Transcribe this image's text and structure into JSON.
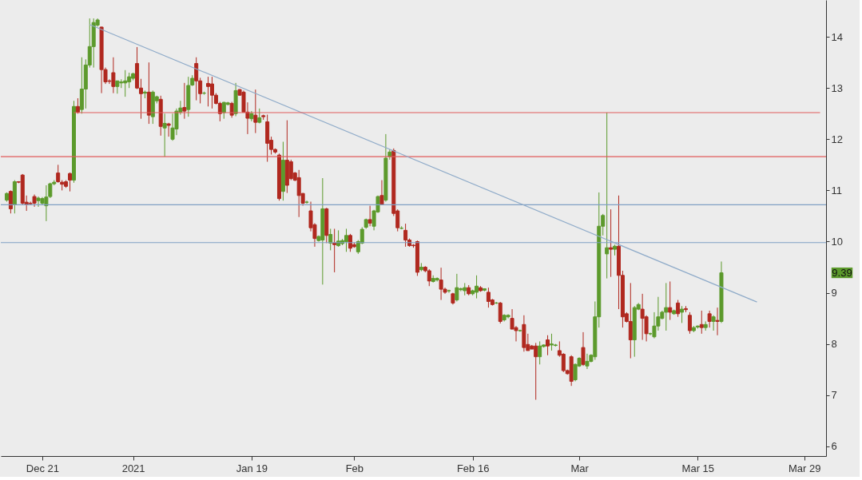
{
  "chart_data": {
    "type": "candlestick",
    "categories": [
      null,
      null,
      null,
      null,
      null,
      null,
      null,
      null,
      null,
      "Dec 21",
      null,
      null,
      null,
      null,
      null,
      null,
      null,
      null,
      null,
      null,
      null,
      null,
      null,
      null,
      null,
      null,
      null,
      null,
      null,
      null,
      null,
      null,
      "2021",
      null,
      null,
      null,
      null,
      null,
      null,
      null,
      null,
      null,
      null,
      null,
      null,
      null,
      null,
      null,
      null,
      null,
      null,
      null,
      null,
      null,
      null,
      null,
      null,
      null,
      null,
      null,
      null,
      null,
      "Jan 19",
      null,
      null,
      null,
      null,
      null,
      null,
      null,
      null,
      null,
      null,
      null,
      null,
      null,
      null,
      null,
      null,
      null,
      null,
      null,
      null,
      null,
      null,
      null,
      null,
      null,
      "Feb",
      null,
      null,
      null,
      null,
      null,
      null,
      null,
      null,
      null,
      null,
      null,
      null,
      null,
      null,
      null,
      null,
      null,
      null,
      null,
      null,
      null,
      null,
      null,
      null,
      null,
      null,
      null,
      null,
      null,
      "Feb 16",
      null,
      null,
      null,
      null,
      null,
      null,
      null,
      null,
      null,
      null,
      null,
      null,
      null,
      null,
      null,
      null,
      null,
      null,
      null,
      null,
      null,
      null,
      null,
      null,
      null,
      null,
      "Mar",
      null,
      null,
      null,
      null,
      null,
      null,
      null,
      null,
      null,
      null,
      null,
      null,
      null,
      null,
      null,
      null,
      null,
      null,
      null,
      null,
      null,
      null,
      null,
      null,
      null,
      null,
      null,
      null,
      null,
      "Mar 15",
      null,
      null,
      null,
      null,
      null,
      null,
      null,
      null,
      null,
      null,
      null,
      null,
      null,
      null,
      null,
      null,
      null,
      null,
      null,
      null,
      null,
      null,
      null,
      null,
      null,
      null,
      "Mar 29",
      null,
      null,
      null,
      null
    ],
    "ohlc": [
      [
        10.81,
        10.96,
        10.78,
        10.94
      ],
      [
        10.98,
        11.0,
        10.55,
        10.64
      ],
      [
        10.72,
        11.2,
        10.55,
        11.17
      ],
      [
        11.17,
        11.18,
        11.14,
        11.16
      ],
      [
        11.3,
        11.32,
        10.72,
        10.75
      ],
      [
        10.77,
        10.9,
        10.6,
        10.72
      ],
      [
        10.75,
        10.78,
        10.72,
        10.74
      ],
      [
        10.88,
        10.92,
        10.68,
        10.75
      ],
      [
        10.8,
        10.88,
        10.68,
        10.85
      ],
      [
        10.75,
        10.87,
        10.72,
        10.84
      ],
      [
        10.7,
        11.1,
        10.4,
        10.87
      ],
      [
        10.88,
        11.15,
        10.85,
        11.13
      ],
      [
        11.13,
        11.2,
        11.1,
        11.16
      ],
      [
        11.34,
        11.5,
        11.15,
        11.17
      ],
      [
        11.16,
        11.2,
        11.0,
        11.12
      ],
      [
        11.17,
        11.2,
        11.05,
        11.08
      ],
      [
        11.33,
        11.35,
        10.98,
        11.2
      ],
      [
        11.2,
        12.75,
        11.15,
        12.64
      ],
      [
        12.64,
        12.8,
        12.5,
        12.53
      ],
      [
        12.58,
        13.6,
        12.5,
        12.98
      ],
      [
        12.98,
        13.56,
        12.6,
        13.45
      ],
      [
        13.45,
        14.36,
        13.4,
        13.81
      ],
      [
        13.81,
        14.36,
        13.4,
        14.28
      ],
      [
        14.23,
        14.36,
        14.2,
        14.33
      ],
      [
        14.19,
        14.2,
        12.9,
        13.36
      ],
      [
        13.36,
        13.4,
        13.08,
        13.12
      ],
      [
        13.14,
        13.17,
        13.08,
        13.13
      ],
      [
        13.3,
        13.6,
        12.9,
        13.03
      ],
      [
        13.03,
        13.14,
        12.89,
        13.14
      ],
      [
        13.1,
        13.17,
        13.0,
        13.12
      ],
      [
        13.1,
        13.35,
        12.83,
        13.14
      ],
      [
        13.12,
        13.3,
        13.0,
        13.22
      ],
      [
        13.19,
        13.3,
        13.15,
        13.28
      ],
      [
        13.48,
        13.8,
        12.98,
        13.0
      ],
      [
        13.0,
        13.18,
        12.4,
        12.89
      ],
      [
        12.9,
        12.95,
        12.8,
        12.92
      ],
      [
        12.92,
        13.5,
        12.3,
        12.47
      ],
      [
        12.44,
        12.95,
        12.3,
        12.92
      ],
      [
        12.75,
        12.85,
        12.7,
        12.83
      ],
      [
        12.78,
        12.85,
        12.07,
        12.25
      ],
      [
        12.22,
        12.5,
        11.66,
        12.31
      ],
      [
        12.3,
        12.32,
        12.05,
        12.27
      ],
      [
        12.0,
        12.5,
        11.97,
        12.22
      ],
      [
        12.2,
        12.6,
        12.08,
        12.55
      ],
      [
        12.53,
        12.75,
        12.48,
        12.61
      ],
      [
        12.62,
        13.1,
        12.4,
        12.55
      ],
      [
        12.58,
        13.22,
        12.44,
        13.05
      ],
      [
        13.06,
        13.25,
        13.04,
        13.19
      ],
      [
        13.48,
        13.6,
        12.76,
        13.14
      ],
      [
        13.14,
        13.2,
        12.7,
        12.89
      ],
      [
        12.9,
        12.93,
        12.87,
        12.9
      ],
      [
        13.09,
        13.22,
        12.64,
        13.03
      ],
      [
        13.08,
        13.22,
        12.6,
        12.86
      ],
      [
        12.86,
        12.9,
        12.68,
        12.7
      ],
      [
        12.7,
        12.73,
        12.35,
        12.5
      ],
      [
        12.52,
        12.73,
        12.4,
        12.72
      ],
      [
        12.68,
        12.73,
        12.66,
        12.71
      ],
      [
        12.7,
        12.73,
        12.42,
        12.47
      ],
      [
        12.5,
        13.1,
        12.45,
        12.95
      ],
      [
        12.97,
        12.98,
        12.85,
        12.86
      ],
      [
        12.92,
        12.95,
        12.53,
        12.53
      ],
      [
        12.53,
        12.72,
        12.1,
        12.41
      ],
      [
        12.4,
        12.55,
        12.35,
        12.5
      ],
      [
        12.47,
        12.97,
        12.12,
        12.33
      ],
      [
        12.33,
        12.6,
        12.31,
        12.42
      ],
      [
        12.46,
        12.48,
        12.38,
        12.44
      ],
      [
        12.34,
        12.48,
        11.56,
        11.92
      ],
      [
        11.98,
        12.05,
        11.7,
        11.8
      ],
      [
        11.8,
        11.82,
        11.72,
        11.75
      ],
      [
        11.69,
        11.72,
        10.8,
        10.84
      ],
      [
        10.98,
        11.95,
        10.8,
        11.59
      ],
      [
        11.59,
        12.37,
        10.95,
        11.1
      ],
      [
        11.56,
        11.6,
        11.2,
        11.23
      ],
      [
        11.34,
        11.36,
        11.18,
        11.2
      ],
      [
        11.25,
        11.4,
        10.48,
        10.9
      ],
      [
        10.94,
        10.95,
        10.7,
        10.75
      ],
      [
        10.77,
        10.8,
        10.74,
        10.77
      ],
      [
        10.6,
        10.78,
        10.2,
        10.27
      ],
      [
        10.33,
        10.36,
        9.9,
        10.06
      ],
      [
        10.02,
        10.12,
        10.0,
        10.1
      ],
      [
        10.03,
        11.24,
        9.16,
        10.64
      ],
      [
        10.64,
        10.66,
        9.97,
        10.12
      ],
      [
        9.97,
        10.25,
        9.83,
        10.14
      ],
      [
        9.97,
        10.25,
        9.4,
        9.94
      ],
      [
        9.92,
        10.22,
        9.9,
        10.01
      ],
      [
        9.96,
        10.05,
        9.93,
        10.02
      ],
      [
        10.0,
        10.25,
        9.8,
        10.12
      ],
      [
        10.12,
        10.15,
        9.8,
        9.87
      ],
      [
        9.94,
        9.98,
        9.88,
        9.9
      ],
      [
        9.8,
        10.03,
        9.76,
        10.0
      ],
      [
        9.97,
        10.28,
        9.95,
        10.24
      ],
      [
        10.28,
        10.45,
        10.25,
        10.43
      ],
      [
        10.43,
        10.7,
        10.3,
        10.36
      ],
      [
        10.3,
        10.62,
        10.22,
        10.6
      ],
      [
        10.58,
        10.9,
        10.56,
        10.88
      ],
      [
        10.9,
        11.2,
        10.72,
        10.72
      ],
      [
        10.81,
        12.1,
        10.78,
        11.63
      ],
      [
        11.66,
        11.8,
        11.6,
        11.75
      ],
      [
        11.78,
        11.82,
        10.5,
        10.55
      ],
      [
        10.6,
        10.63,
        10.2,
        10.27
      ],
      [
        10.26,
        10.3,
        10.24,
        10.26
      ],
      [
        10.22,
        10.35,
        9.9,
        10.03
      ],
      [
        10.03,
        10.06,
        9.9,
        9.92
      ],
      [
        9.93,
        9.95,
        9.88,
        9.92
      ],
      [
        10.0,
        10.02,
        9.33,
        9.4
      ],
      [
        9.45,
        9.58,
        9.42,
        9.5
      ],
      [
        9.5,
        9.52,
        9.4,
        9.43
      ],
      [
        9.43,
        9.46,
        9.13,
        9.23
      ],
      [
        9.22,
        9.34,
        9.2,
        9.28
      ],
      [
        9.25,
        9.3,
        9.22,
        9.28
      ],
      [
        9.25,
        9.49,
        8.86,
        9.07
      ],
      [
        9.07,
        9.1,
        8.98,
        9.01
      ],
      [
        9.04,
        9.06,
        9.0,
        9.04
      ],
      [
        8.98,
        9.0,
        8.77,
        8.8
      ],
      [
        8.86,
        9.37,
        8.83,
        9.1
      ],
      [
        9.06,
        9.1,
        9.03,
        9.08
      ],
      [
        9.04,
        9.19,
        8.95,
        9.1
      ],
      [
        9.1,
        9.15,
        8.95,
        8.98
      ],
      [
        8.98,
        9.06,
        8.95,
        9.04
      ],
      [
        9.01,
        9.34,
        8.89,
        9.13
      ],
      [
        9.1,
        9.13,
        9.02,
        9.04
      ],
      [
        9.05,
        9.08,
        9.03,
        9.08
      ],
      [
        9.01,
        9.1,
        8.71,
        8.83
      ],
      [
        8.86,
        8.88,
        8.75,
        8.77
      ],
      [
        8.8,
        8.82,
        8.78,
        8.8
      ],
      [
        8.8,
        8.82,
        8.4,
        8.44
      ],
      [
        8.47,
        8.58,
        8.44,
        8.56
      ],
      [
        8.53,
        8.58,
        8.5,
        8.56
      ],
      [
        8.5,
        8.68,
        8.29,
        8.29
      ],
      [
        8.32,
        8.35,
        8.05,
        8.26
      ],
      [
        8.26,
        8.28,
        8.24,
        8.26
      ],
      [
        8.38,
        8.56,
        7.85,
        7.93
      ],
      [
        7.99,
        8.2,
        7.87,
        7.87
      ],
      [
        7.96,
        7.98,
        7.9,
        7.9
      ],
      [
        7.96,
        8.02,
        6.91,
        7.75
      ],
      [
        7.75,
        8.05,
        7.6,
        7.96
      ],
      [
        7.95,
        7.99,
        7.93,
        7.98
      ],
      [
        8.08,
        8.17,
        7.78,
        7.96
      ],
      [
        7.98,
        8.2,
        7.87,
        8.0
      ],
      [
        7.97,
        8.0,
        7.95,
        7.98
      ],
      [
        7.87,
        8.05,
        7.75,
        7.78
      ],
      [
        7.8,
        7.82,
        7.45,
        7.48
      ],
      [
        7.48,
        7.5,
        7.4,
        7.42
      ],
      [
        7.75,
        7.78,
        7.18,
        7.27
      ],
      [
        7.3,
        7.62,
        7.27,
        7.6
      ],
      [
        7.57,
        7.74,
        7.55,
        7.72
      ],
      [
        7.93,
        8.23,
        7.57,
        7.6
      ],
      [
        7.57,
        7.81,
        7.51,
        7.66
      ],
      [
        7.66,
        7.8,
        7.64,
        7.78
      ],
      [
        7.75,
        8.83,
        7.69,
        8.53
      ],
      [
        8.53,
        10.96,
        8.32,
        10.3
      ],
      [
        10.3,
        10.54,
        10.12,
        10.51
      ],
      [
        9.76,
        12.52,
        9.28,
        9.88
      ],
      [
        9.88,
        10.63,
        9.31,
        9.85
      ],
      [
        9.85,
        9.94,
        9.73,
        9.91
      ],
      [
        9.91,
        10.9,
        8.68,
        9.34
      ],
      [
        9.34,
        9.43,
        8.32,
        8.53
      ],
      [
        8.59,
        8.62,
        8.42,
        8.44
      ],
      [
        8.44,
        9.19,
        7.72,
        8.08
      ],
      [
        8.08,
        8.74,
        7.75,
        8.71
      ],
      [
        8.68,
        8.8,
        8.66,
        8.77
      ],
      [
        8.68,
        8.98,
        8.08,
        8.5
      ],
      [
        8.53,
        8.56,
        8.05,
        8.2
      ],
      [
        8.2,
        8.22,
        8.17,
        8.2
      ],
      [
        8.14,
        8.62,
        8.11,
        8.35
      ],
      [
        8.35,
        8.92,
        8.26,
        8.53
      ],
      [
        8.5,
        8.65,
        8.48,
        8.62
      ],
      [
        8.62,
        9.19,
        8.26,
        8.71
      ],
      [
        8.71,
        9.22,
        8.47,
        8.62
      ],
      [
        8.59,
        8.67,
        8.57,
        8.65
      ],
      [
        8.8,
        8.86,
        8.53,
        8.59
      ],
      [
        8.62,
        8.74,
        8.41,
        8.68
      ],
      [
        8.69,
        8.74,
        8.62,
        8.67
      ],
      [
        8.56,
        8.62,
        8.2,
        8.26
      ],
      [
        8.26,
        8.35,
        8.23,
        8.32
      ],
      [
        8.33,
        8.36,
        8.3,
        8.35
      ],
      [
        8.38,
        8.65,
        8.2,
        8.32
      ],
      [
        8.32,
        8.44,
        8.26,
        8.38
      ],
      [
        8.59,
        8.65,
        8.32,
        8.44
      ],
      [
        8.44,
        8.56,
        8.26,
        8.53
      ],
      [
        8.46,
        8.71,
        8.17,
        8.44
      ],
      [
        8.44,
        9.61,
        8.41,
        9.39
      ],
      null,
      null,
      null,
      null,
      null,
      null,
      null,
      null,
      null,
      null,
      null,
      null,
      null,
      null,
      null,
      null,
      null,
      null,
      null,
      null,
      null,
      null,
      null,
      null,
      null
    ],
    "colors": [
      "#5c9a2c",
      "#b0281f",
      "#5c9a2c",
      "#b0281f",
      "#b0281f",
      "#b0281f",
      "#b0281f",
      "#b0281f",
      "#5c9a2c",
      "#5c9a2c",
      "#5c9a2c",
      "#5c9a2c",
      "#5c9a2c",
      "#b0281f",
      "#b0281f",
      "#b0281f",
      "#b0281f",
      "#5c9a2c",
      "#b0281f",
      "#5c9a2c",
      "#5c9a2c",
      "#5c9a2c",
      "#5c9a2c",
      "#5c9a2c",
      "#b0281f",
      "#b0281f",
      "#b0281f",
      "#b0281f",
      "#5c9a2c",
      "#5c9a2c",
      "#5c9a2c",
      "#5c9a2c",
      "#5c9a2c",
      "#b0281f",
      "#b0281f",
      "#5c9a2c",
      "#b0281f",
      "#5c9a2c",
      "#5c9a2c",
      "#b0281f",
      "#5c9a2c",
      "#b0281f",
      "#5c9a2c",
      "#5c9a2c",
      "#5c9a2c",
      "#b0281f",
      "#5c9a2c",
      "#5c9a2c",
      "#b0281f",
      "#b0281f",
      "#5c9a2c",
      "#b0281f",
      "#b0281f",
      "#b0281f",
      "#b0281f",
      "#5c9a2c",
      "#5c9a2c",
      "#b0281f",
      "#5c9a2c",
      "#b0281f",
      "#b0281f",
      "#b0281f",
      "#5c9a2c",
      "#b0281f",
      "#5c9a2c",
      "#b0281f",
      "#b0281f",
      "#b0281f",
      "#b0281f",
      "#b0281f",
      "#5c9a2c",
      "#b0281f",
      "#b0281f",
      "#b0281f",
      "#b0281f",
      "#b0281f",
      "#5c9a2c",
      "#b0281f",
      "#b0281f",
      "#5c9a2c",
      "#5c9a2c",
      "#b0281f",
      "#5c9a2c",
      "#b0281f",
      "#5c9a2c",
      "#5c9a2c",
      "#5c9a2c",
      "#b0281f",
      "#b0281f",
      "#5c9a2c",
      "#5c9a2c",
      "#5c9a2c",
      "#b0281f",
      "#5c9a2c",
      "#5c9a2c",
      "#b0281f",
      "#5c9a2c",
      "#5c9a2c",
      "#b0281f",
      "#b0281f",
      "#5c9a2c",
      "#b0281f",
      "#b0281f",
      "#b0281f",
      "#b0281f",
      "#5c9a2c",
      "#b0281f",
      "#b0281f",
      "#5c9a2c",
      "#5c9a2c",
      "#b0281f",
      "#b0281f",
      "#5c9a2c",
      "#b0281f",
      "#5c9a2c",
      "#5c9a2c",
      "#5c9a2c",
      "#b0281f",
      "#5c9a2c",
      "#5c9a2c",
      "#b0281f",
      "#5c9a2c",
      "#b0281f",
      "#b0281f",
      "#5c9a2c",
      "#b0281f",
      "#5c9a2c",
      "#5c9a2c",
      "#b0281f",
      "#b0281f",
      "#5c9a2c",
      "#b0281f",
      "#b0281f",
      "#b0281f",
      "#b0281f",
      "#5c9a2c",
      "#5c9a2c",
      "#b0281f",
      "#5c9a2c",
      "#5c9a2c",
      "#b0281f",
      "#b0281f",
      "#b0281f",
      "#b0281f",
      "#5c9a2c",
      "#5c9a2c",
      "#b0281f",
      "#5c9a2c",
      "#5c9a2c",
      "#5c9a2c",
      "#5c9a2c",
      "#5c9a2c",
      "#5c9a2c",
      "#b0281f",
      "#5c9a2c",
      "#b0281f",
      "#b0281f",
      "#b0281f",
      "#b0281f",
      "#5c9a2c",
      "#5c9a2c",
      "#b0281f",
      "#b0281f",
      "#5c9a2c",
      "#5c9a2c",
      "#5c9a2c",
      "#5c9a2c",
      "#5c9a2c",
      "#b0281f",
      "#5c9a2c",
      "#b0281f",
      "#5c9a2c",
      "#b0281f",
      "#b0281f",
      "#5c9a2c",
      "#5c9a2c",
      "#b0281f",
      "#5c9a2c",
      "#b0281f",
      "#5c9a2c",
      "#b0281f",
      "#5c9a2c",
      null,
      null,
      null,
      null,
      null,
      null,
      null,
      null,
      null,
      null,
      null,
      null,
      null,
      null,
      null,
      null,
      null,
      null,
      null,
      null,
      null,
      null,
      null,
      null,
      null
    ],
    "series": [
      {
        "type": "line",
        "color": "#8fabc9",
        "values": [
          null,
          null,
          null,
          null,
          null,
          null,
          null,
          null,
          null,
          null,
          null,
          null,
          null,
          null,
          null,
          null,
          null,
          null,
          null,
          null,
          null,
          14.24,
          null,
          null,
          null,
          null,
          null,
          null,
          null,
          null,
          null,
          null,
          null,
          null,
          null,
          null,
          null,
          null,
          null,
          null,
          null,
          null,
          null,
          null,
          null,
          null,
          null,
          null,
          null,
          null,
          null,
          null,
          null,
          null,
          null,
          null,
          null,
          null,
          null,
          null,
          null,
          null,
          null,
          null,
          null,
          null,
          null,
          null,
          null,
          null,
          null,
          null,
          null,
          null,
          null,
          null,
          null,
          null,
          null,
          null,
          null,
          null,
          null,
          null,
          null,
          null,
          null,
          null,
          null,
          null,
          null,
          null,
          null,
          null,
          null,
          null,
          null,
          null,
          null,
          null,
          null,
          null,
          null,
          null,
          null,
          null,
          null,
          null,
          null,
          null,
          null,
          null,
          null,
          null,
          null,
          null,
          null,
          null,
          null,
          null,
          null,
          null,
          null,
          null,
          null,
          null,
          null,
          null,
          null,
          null,
          null,
          null,
          null,
          null,
          null,
          null,
          null,
          null,
          null,
          null,
          null,
          null,
          null,
          null,
          null,
          null,
          null,
          null,
          null,
          null,
          null,
          null,
          null,
          null,
          null,
          null,
          null,
          null,
          null,
          null,
          null,
          null,
          null,
          null,
          null,
          null,
          null,
          null,
          null,
          null,
          null,
          null,
          null,
          null,
          null,
          null,
          null,
          null,
          null,
          null,
          null,
          null,
          null,
          null,
          null,
          null,
          null,
          null,
          null,
          null,
          8.82,
          null,
          null,
          null,
          null,
          null,
          null,
          null,
          null,
          null,
          null,
          null,
          null,
          null,
          null,
          null,
          null
        ]
      },
      {
        "type": "line",
        "color": "#e05a5a",
        "values": [
          null,
          null,
          null,
          null,
          null,
          null,
          null,
          null,
          null,
          null,
          null,
          null,
          null,
          null,
          null,
          null,
          null,
          12.52,
          null,
          null,
          null,
          null,
          null,
          null,
          null,
          null,
          null,
          null,
          null,
          null,
          null,
          null,
          null,
          null,
          null,
          null,
          null,
          null,
          null,
          null,
          null,
          null,
          null,
          null,
          null,
          null,
          null,
          null,
          null,
          null,
          null,
          null,
          null,
          null,
          null,
          null,
          null,
          null,
          null,
          null,
          null,
          null,
          null,
          null,
          null,
          null,
          null,
          null,
          null,
          null,
          null,
          null,
          null,
          null,
          null,
          null,
          null,
          null,
          null,
          null,
          null,
          null,
          null,
          null,
          null,
          null,
          null,
          null,
          null,
          null,
          null,
          null,
          null,
          null,
          null,
          null,
          null,
          null,
          null,
          null,
          null,
          null,
          null,
          null,
          null,
          null,
          null,
          null,
          null,
          null,
          null,
          null,
          null,
          null,
          null,
          null,
          null,
          null,
          null,
          null,
          null,
          null,
          null,
          null,
          null,
          null,
          null,
          null,
          null,
          null,
          null,
          null,
          null,
          null,
          null,
          null,
          null,
          null,
          null,
          null,
          null,
          null,
          null,
          null,
          null,
          null,
          null,
          null,
          null,
          null,
          null,
          null,
          null,
          null,
          null,
          null,
          null,
          null,
          null,
          null,
          null,
          null,
          null,
          null,
          null,
          null,
          null,
          null,
          null,
          null,
          null,
          null,
          null,
          null,
          null,
          null,
          null,
          null,
          null,
          null,
          null,
          null,
          null,
          null,
          null,
          null,
          null,
          null,
          null,
          null,
          null,
          null,
          null,
          null,
          null,
          null,
          null,
          null,
          null,
          null,
          null,
          null,
          null,
          null,
          null,
          null,
          12.52
        ]
      }
    ],
    "ref_lines": [
      {
        "axis": "y",
        "value": 11.66,
        "color": "#e05a5a"
      },
      {
        "axis": "y",
        "value": 10.72,
        "color": "#7f9fc4"
      },
      {
        "axis": "y",
        "value": 9.98,
        "color": "#7f9fc4"
      }
    ],
    "annotations": [
      "9.39"
    ],
    "ylim": [
      5.81,
      14.72
    ],
    "yticks": [
      6,
      7,
      8,
      9,
      10,
      11,
      12,
      13,
      14
    ],
    "grid": false
  }
}
